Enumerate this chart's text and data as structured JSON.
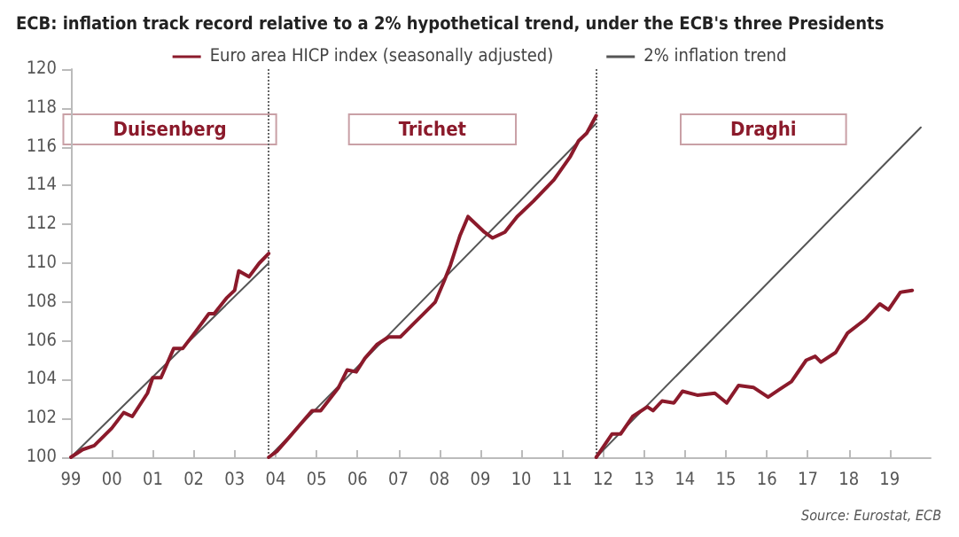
{
  "chart_data": {
    "type": "line",
    "title": "ECB: inflation track record relative to a 2% hypothetical trend, under the ECB's three Presidents",
    "xlim": [
      1999,
      2020
    ],
    "xticks": [
      {
        "value": 1999,
        "label": "99"
      },
      {
        "value": 2000,
        "label": "00"
      },
      {
        "value": 2001,
        "label": "01"
      },
      {
        "value": 2002,
        "label": "02"
      },
      {
        "value": 2003,
        "label": "03"
      },
      {
        "value": 2004,
        "label": "04"
      },
      {
        "value": 2005,
        "label": "05"
      },
      {
        "value": 2006,
        "label": "06"
      },
      {
        "value": 2007,
        "label": "07"
      },
      {
        "value": 2008,
        "label": "08"
      },
      {
        "value": 2009,
        "label": "09"
      },
      {
        "value": 2010,
        "label": "10"
      },
      {
        "value": 2011,
        "label": "11"
      },
      {
        "value": 2012,
        "label": "12"
      },
      {
        "value": 2013,
        "label": "13"
      },
      {
        "value": 2014,
        "label": "14"
      },
      {
        "value": 2015,
        "label": "15"
      },
      {
        "value": 2016,
        "label": "16"
      },
      {
        "value": 2017,
        "label": "17"
      },
      {
        "value": 2018,
        "label": "18"
      },
      {
        "value": 2019,
        "label": "19"
      }
    ],
    "ylim": [
      100,
      120
    ],
    "yticks": [
      100,
      102,
      104,
      106,
      108,
      110,
      112,
      114,
      116,
      118,
      120
    ],
    "grid": false,
    "legend": "top",
    "marker": "none",
    "series": [
      {
        "name": "Euro area HICP index (seasonally adjusted)",
        "color": "#8b1a2b",
        "x": [
          1999,
          1999.29,
          1999.57,
          2000.0,
          2000.29,
          2000.5,
          2000.87,
          2001.0,
          2001.2,
          2001.51,
          2001.73,
          2002.02,
          2002.37,
          2002.5,
          2002.8,
          2003.0,
          2003.1,
          2003.35,
          2003.6,
          2003.83,
          2003.831,
          2003.832,
          2004.03,
          2004.32,
          2004.89,
          2005.1,
          2005.54,
          2005.75,
          2005.97,
          2006.18,
          2006.47,
          2006.76,
          2007.05,
          2007.33,
          2007.62,
          2007.9,
          2008.12,
          2008.27,
          2008.5,
          2008.7,
          2008.9,
          2009.1,
          2009.3,
          2009.6,
          2009.9,
          2010.3,
          2010.8,
          2011.2,
          2011.4,
          2011.6,
          2011.83,
          2011.831,
          2011.832,
          2012.22,
          2012.43,
          2012.72,
          2013.08,
          2013.22,
          2013.44,
          2013.73,
          2013.94,
          2014.3,
          2014.73,
          2015.02,
          2015.31,
          2015.67,
          2016.03,
          2016.31,
          2016.6,
          2016.96,
          2017.18,
          2017.32,
          2017.68,
          2017.97,
          2018.4,
          2018.76,
          2018.97,
          2019.26,
          2019.55
        ],
        "values": [
          100,
          100.4,
          100.6,
          101.5,
          102.3,
          102.1,
          103.3,
          104.1,
          104.1,
          105.6,
          105.6,
          106.4,
          107.4,
          107.4,
          108.2,
          108.6,
          109.6,
          109.3,
          110.0,
          110.5,
          null,
          100,
          100.3,
          101.0,
          102.4,
          102.4,
          103.6,
          104.5,
          104.4,
          105.1,
          105.8,
          106.2,
          106.2,
          106.8,
          107.4,
          108.0,
          109.1,
          109.9,
          111.4,
          112.4,
          112.0,
          111.6,
          111.3,
          111.6,
          112.4,
          113.2,
          114.3,
          115.5,
          116.3,
          116.7,
          117.6,
          null,
          100,
          101.2,
          101.2,
          102.1,
          102.6,
          102.4,
          102.9,
          102.8,
          103.4,
          103.2,
          103.3,
          102.8,
          103.7,
          103.6,
          103.1,
          103.5,
          103.9,
          105.0,
          105.2,
          104.9,
          105.4,
          106.4,
          107.1,
          107.9,
          107.6,
          108.5,
          108.6
        ]
      },
      {
        "name": "2% inflation trend",
        "color": "#555555",
        "x": [
          1999,
          2003.83,
          2003.831,
          2003.832,
          2011.83,
          2011.831,
          2011.832,
          2019.76
        ],
        "values": [
          100,
          110.0,
          null,
          100,
          117.2,
          null,
          100,
          117.0
        ]
      }
    ],
    "ref_lines": [
      {
        "axis": "x",
        "value": 2003.83,
        "color": "#666666",
        "line_style": "dotted"
      },
      {
        "axis": "x",
        "value": 2011.83,
        "color": "#666666",
        "line_style": "dotted"
      }
    ],
    "annotations": [
      "Duisenberg",
      "Trichet",
      "Draghi",
      "Source: Eurostat, ECB"
    ]
  }
}
